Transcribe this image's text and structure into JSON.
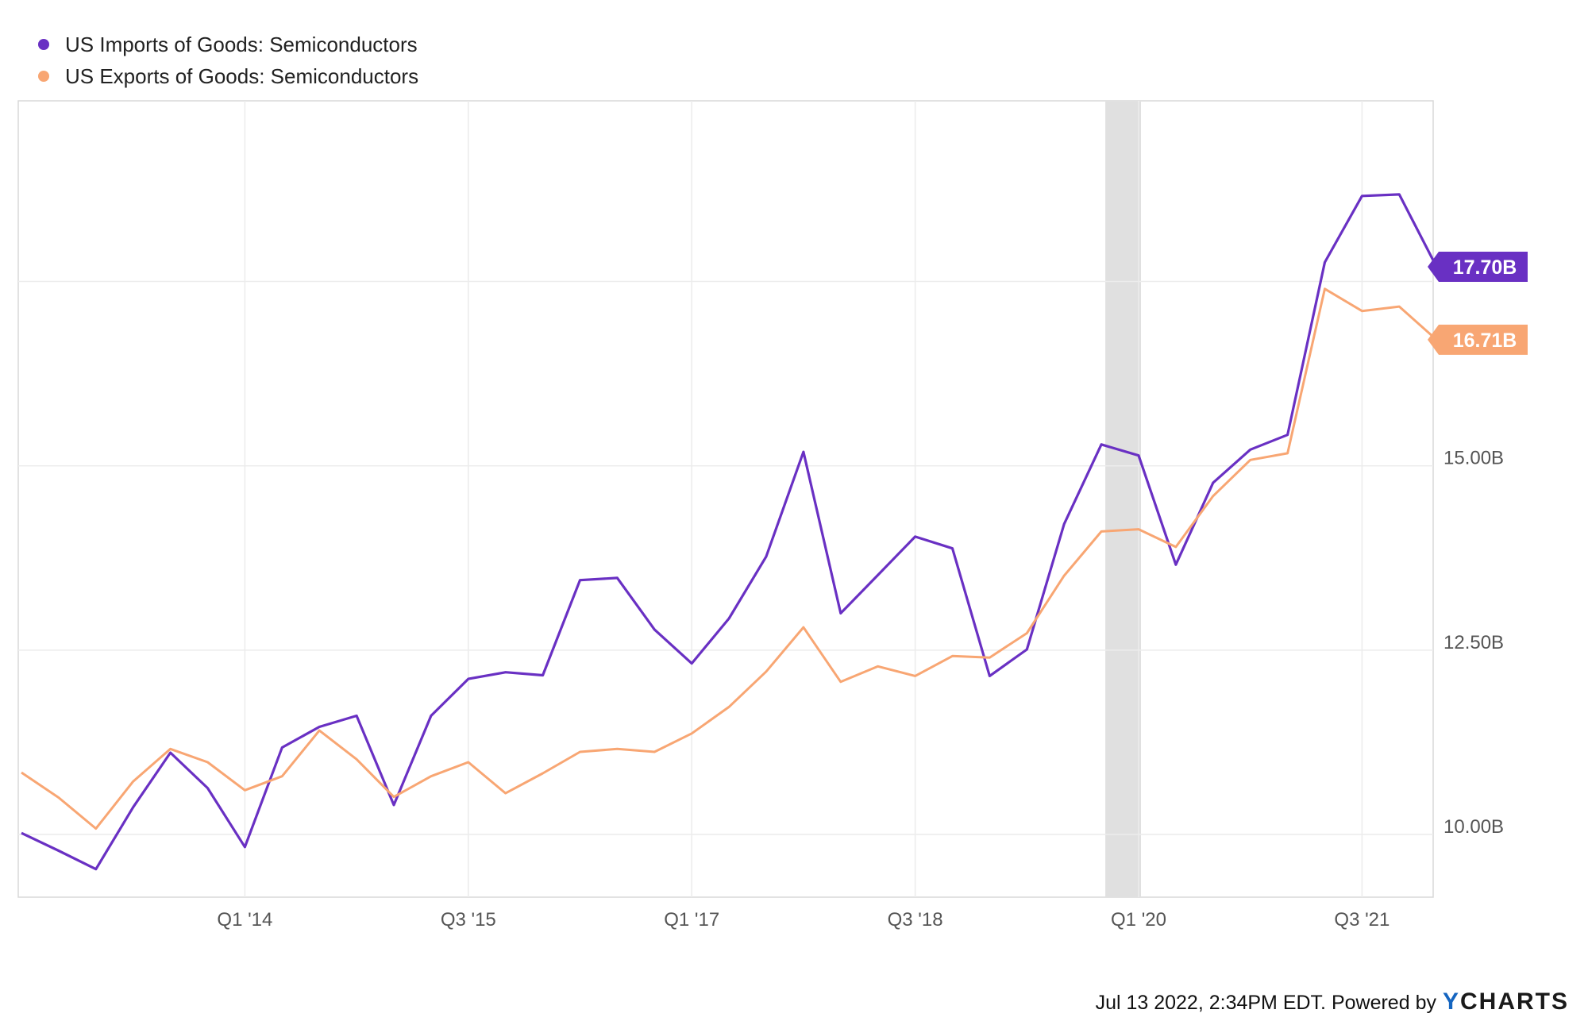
{
  "chart_data": {
    "type": "line",
    "title": "",
    "xlabel": "",
    "ylabel": "",
    "x": [
      "Q3 '12",
      "Q4 '12",
      "Q1 '13",
      "Q2 '13",
      "Q3 '13",
      "Q4 '13",
      "Q1 '14",
      "Q2 '14",
      "Q3 '14",
      "Q4 '14",
      "Q1 '15",
      "Q2 '15",
      "Q3 '15",
      "Q4 '15",
      "Q1 '16",
      "Q2 '16",
      "Q3 '16",
      "Q4 '16",
      "Q1 '17",
      "Q2 '17",
      "Q3 '17",
      "Q4 '17",
      "Q1 '18",
      "Q2 '18",
      "Q3 '18",
      "Q4 '18",
      "Q1 '19",
      "Q2 '19",
      "Q3 '19",
      "Q4 '19",
      "Q1 '20",
      "Q2 '20",
      "Q3 '20",
      "Q4 '20",
      "Q1 '21",
      "Q2 '21",
      "Q3 '21",
      "Q4 '21",
      "Q1 '22"
    ],
    "x_ticks": [
      "Q1 '14",
      "Q3 '15",
      "Q1 '17",
      "Q3 '18",
      "Q1 '20",
      "Q3 '21"
    ],
    "y_ticks": [
      "10.00B",
      "12.50B",
      "15.00B"
    ],
    "ylim": [
      9.15,
      19.95
    ],
    "y_tick_values": [
      10,
      12.5,
      15
    ],
    "recession_band": {
      "from": "Q4 '19",
      "to": "Q1 '20"
    },
    "grid": true,
    "legend_position": "top-left",
    "series": [
      {
        "name": "US Imports of Goods: Semiconductors",
        "color": "#6930c3",
        "last_label": "17.70B",
        "values": [
          10.02,
          9.78,
          9.53,
          10.37,
          11.11,
          10.63,
          9.83,
          11.18,
          11.46,
          11.61,
          10.4,
          11.61,
          12.11,
          12.2,
          12.16,
          13.45,
          13.48,
          12.78,
          12.32,
          12.93,
          13.77,
          15.19,
          13.0,
          13.52,
          14.04,
          13.88,
          12.15,
          12.51,
          14.21,
          15.29,
          15.14,
          13.66,
          14.77,
          15.22,
          15.42,
          17.76,
          18.66,
          18.68,
          17.7
        ]
      },
      {
        "name": "US Exports of Goods: Semiconductors",
        "color": "#f8a673",
        "last_label": "16.71B",
        "values": [
          10.84,
          10.5,
          10.08,
          10.72,
          11.16,
          10.98,
          10.6,
          10.79,
          11.41,
          11.02,
          10.51,
          10.79,
          10.98,
          10.56,
          10.83,
          11.12,
          11.16,
          11.12,
          11.37,
          11.73,
          12.21,
          12.81,
          12.07,
          12.28,
          12.15,
          12.42,
          12.4,
          12.73,
          13.51,
          14.11,
          14.14,
          13.9,
          14.59,
          15.08,
          15.17,
          17.4,
          17.1,
          17.16,
          16.71
        ]
      }
    ]
  },
  "footer": {
    "text": "Jul 13 2022, 2:34PM EDT.  Powered by",
    "brand_y": "Y",
    "brand_rest": "CHARTS"
  }
}
